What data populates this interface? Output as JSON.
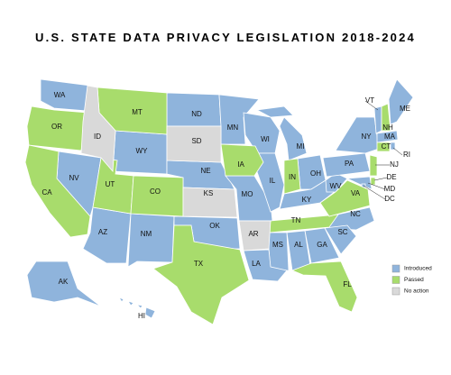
{
  "title": "U.S. STATE DATA PRIVACY LEGISLATION 2018-2024",
  "legend": [
    {
      "label": "Introduced",
      "color": "#8fb4dc",
      "states": [
        "WA",
        "NV",
        "AZ",
        "NM",
        "WY",
        "ND",
        "MN",
        "WI",
        "MI",
        "NE",
        "OK",
        "MO",
        "IL",
        "OH",
        "KY",
        "WV",
        "PA",
        "NY",
        "VT",
        "ME",
        "MA",
        "RI",
        "MD",
        "DC",
        "NC",
        "SC",
        "GA",
        "AL",
        "MS",
        "LA",
        "AK",
        "HI"
      ]
    },
    {
      "label": "Passed",
      "color": "#a8dc6c",
      "states": [
        "OR",
        "MT",
        "CA",
        "UT",
        "CO",
        "TX",
        "IA",
        "IN",
        "TN",
        "VA",
        "NH",
        "CT",
        "NJ",
        "DE",
        "FL"
      ]
    },
    {
      "label": "No action",
      "color": "#d9d9d9",
      "states": [
        "ID",
        "SD",
        "KS",
        "AR"
      ]
    }
  ]
}
